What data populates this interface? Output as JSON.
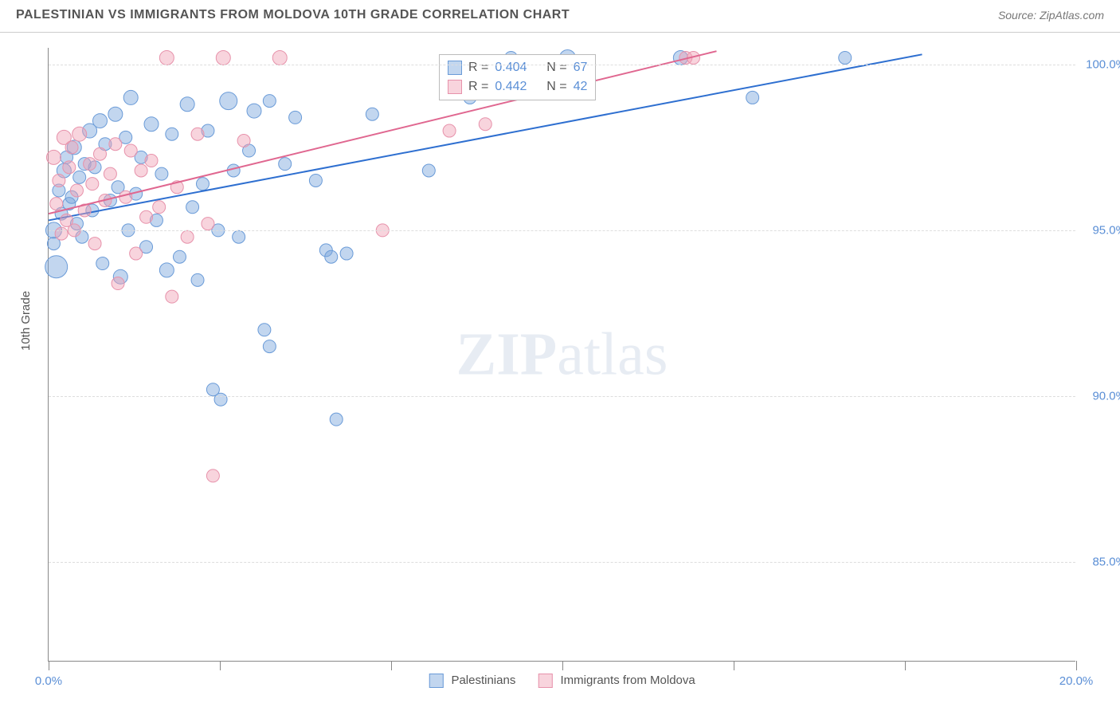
{
  "header": {
    "title": "PALESTINIAN VS IMMIGRANTS FROM MOLDOVA 10TH GRADE CORRELATION CHART",
    "source": "Source: ZipAtlas.com"
  },
  "chart": {
    "type": "scatter",
    "y_axis_title": "10th Grade",
    "xlim": [
      0,
      20
    ],
    "ylim": [
      82,
      100.5
    ],
    "x_ticks": [
      0,
      10,
      20
    ],
    "x_tick_labels": [
      "0.0%",
      "",
      "20.0%"
    ],
    "x_minor_ticks": [
      3.33,
      6.67,
      13.33,
      16.67
    ],
    "y_ticks": [
      85,
      90,
      95,
      100
    ],
    "y_tick_labels": [
      "85.0%",
      "90.0%",
      "95.0%",
      "100.0%"
    ],
    "background_color": "#ffffff",
    "grid_color": "#dddddd",
    "axis_color": "#888888",
    "tick_label_color": "#5b8fd6",
    "watermark_text_bold": "ZIP",
    "watermark_text_light": "atlas",
    "series": [
      {
        "name": "Palestinians",
        "color_fill": "rgba(120,165,220,0.45)",
        "color_stroke": "#6a9bd8",
        "trend_color": "#2e6fd0",
        "trend": {
          "x1": 0,
          "y1": 95.3,
          "x2": 17,
          "y2": 100.3
        },
        "r_label": "R =",
        "r_value": "0.404",
        "n_label": "N =",
        "n_value": "67",
        "points": [
          {
            "x": 0.1,
            "y": 95.0,
            "r": 10
          },
          {
            "x": 0.1,
            "y": 94.6,
            "r": 8
          },
          {
            "x": 0.15,
            "y": 93.9,
            "r": 14
          },
          {
            "x": 0.2,
            "y": 96.2,
            "r": 8
          },
          {
            "x": 0.25,
            "y": 95.5,
            "r": 8
          },
          {
            "x": 0.3,
            "y": 96.8,
            "r": 9
          },
          {
            "x": 0.35,
            "y": 97.2,
            "r": 8
          },
          {
            "x": 0.4,
            "y": 95.8,
            "r": 8
          },
          {
            "x": 0.45,
            "y": 96.0,
            "r": 8
          },
          {
            "x": 0.5,
            "y": 97.5,
            "r": 9
          },
          {
            "x": 0.55,
            "y": 95.2,
            "r": 8
          },
          {
            "x": 0.6,
            "y": 96.6,
            "r": 8
          },
          {
            "x": 0.65,
            "y": 94.8,
            "r": 8
          },
          {
            "x": 0.7,
            "y": 97.0,
            "r": 8
          },
          {
            "x": 0.8,
            "y": 98.0,
            "r": 9
          },
          {
            "x": 0.85,
            "y": 95.6,
            "r": 8
          },
          {
            "x": 0.9,
            "y": 96.9,
            "r": 8
          },
          {
            "x": 1.0,
            "y": 98.3,
            "r": 9
          },
          {
            "x": 1.05,
            "y": 94.0,
            "r": 8
          },
          {
            "x": 1.1,
            "y": 97.6,
            "r": 8
          },
          {
            "x": 1.2,
            "y": 95.9,
            "r": 8
          },
          {
            "x": 1.3,
            "y": 98.5,
            "r": 9
          },
          {
            "x": 1.35,
            "y": 96.3,
            "r": 8
          },
          {
            "x": 1.4,
            "y": 93.6,
            "r": 9
          },
          {
            "x": 1.5,
            "y": 97.8,
            "r": 8
          },
          {
            "x": 1.55,
            "y": 95.0,
            "r": 8
          },
          {
            "x": 1.6,
            "y": 99.0,
            "r": 9
          },
          {
            "x": 1.7,
            "y": 96.1,
            "r": 8
          },
          {
            "x": 1.8,
            "y": 97.2,
            "r": 8
          },
          {
            "x": 1.9,
            "y": 94.5,
            "r": 8
          },
          {
            "x": 2.0,
            "y": 98.2,
            "r": 9
          },
          {
            "x": 2.1,
            "y": 95.3,
            "r": 8
          },
          {
            "x": 2.2,
            "y": 96.7,
            "r": 8
          },
          {
            "x": 2.3,
            "y": 93.8,
            "r": 9
          },
          {
            "x": 2.4,
            "y": 97.9,
            "r": 8
          },
          {
            "x": 2.55,
            "y": 94.2,
            "r": 8
          },
          {
            "x": 2.7,
            "y": 98.8,
            "r": 9
          },
          {
            "x": 2.8,
            "y": 95.7,
            "r": 8
          },
          {
            "x": 2.9,
            "y": 93.5,
            "r": 8
          },
          {
            "x": 3.0,
            "y": 96.4,
            "r": 8
          },
          {
            "x": 3.1,
            "y": 98.0,
            "r": 8
          },
          {
            "x": 3.2,
            "y": 90.2,
            "r": 8
          },
          {
            "x": 3.3,
            "y": 95.0,
            "r": 8
          },
          {
            "x": 3.35,
            "y": 89.9,
            "r": 8
          },
          {
            "x": 3.5,
            "y": 98.9,
            "r": 11
          },
          {
            "x": 3.6,
            "y": 96.8,
            "r": 8
          },
          {
            "x": 3.7,
            "y": 94.8,
            "r": 8
          },
          {
            "x": 3.9,
            "y": 97.4,
            "r": 8
          },
          {
            "x": 4.0,
            "y": 98.6,
            "r": 9
          },
          {
            "x": 4.2,
            "y": 92.0,
            "r": 8
          },
          {
            "x": 4.3,
            "y": 98.9,
            "r": 8
          },
          {
            "x": 4.3,
            "y": 91.5,
            "r": 8
          },
          {
            "x": 4.6,
            "y": 97.0,
            "r": 8
          },
          {
            "x": 4.8,
            "y": 98.4,
            "r": 8
          },
          {
            "x": 5.2,
            "y": 96.5,
            "r": 8
          },
          {
            "x": 5.4,
            "y": 94.4,
            "r": 8
          },
          {
            "x": 5.5,
            "y": 94.2,
            "r": 8
          },
          {
            "x": 5.6,
            "y": 89.3,
            "r": 8
          },
          {
            "x": 6.3,
            "y": 98.5,
            "r": 8
          },
          {
            "x": 7.4,
            "y": 96.8,
            "r": 8
          },
          {
            "x": 8.2,
            "y": 99.0,
            "r": 8
          },
          {
            "x": 9.0,
            "y": 100.2,
            "r": 8
          },
          {
            "x": 10.1,
            "y": 100.2,
            "r": 10
          },
          {
            "x": 12.3,
            "y": 100.2,
            "r": 9
          },
          {
            "x": 13.7,
            "y": 99.0,
            "r": 8
          },
          {
            "x": 15.5,
            "y": 100.2,
            "r": 8
          },
          {
            "x": 5.8,
            "y": 94.3,
            "r": 8
          }
        ]
      },
      {
        "name": "Immigrants from Moldova",
        "color_fill": "rgba(240,160,180,0.45)",
        "color_stroke": "#e792ab",
        "trend_color": "#e06790",
        "trend": {
          "x1": 0,
          "y1": 95.5,
          "x2": 13,
          "y2": 100.4
        },
        "r_label": "R =",
        "r_value": "0.442",
        "n_label": "N =",
        "n_value": "42",
        "points": [
          {
            "x": 0.1,
            "y": 97.2,
            "r": 9
          },
          {
            "x": 0.15,
            "y": 95.8,
            "r": 8
          },
          {
            "x": 0.2,
            "y": 96.5,
            "r": 8
          },
          {
            "x": 0.25,
            "y": 94.9,
            "r": 8
          },
          {
            "x": 0.3,
            "y": 97.8,
            "r": 9
          },
          {
            "x": 0.35,
            "y": 95.3,
            "r": 8
          },
          {
            "x": 0.4,
            "y": 96.9,
            "r": 8
          },
          {
            "x": 0.45,
            "y": 97.5,
            "r": 8
          },
          {
            "x": 0.5,
            "y": 95.0,
            "r": 8
          },
          {
            "x": 0.55,
            "y": 96.2,
            "r": 8
          },
          {
            "x": 0.6,
            "y": 97.9,
            "r": 9
          },
          {
            "x": 0.7,
            "y": 95.6,
            "r": 8
          },
          {
            "x": 0.8,
            "y": 97.0,
            "r": 8
          },
          {
            "x": 0.85,
            "y": 96.4,
            "r": 8
          },
          {
            "x": 0.9,
            "y": 94.6,
            "r": 8
          },
          {
            "x": 1.0,
            "y": 97.3,
            "r": 8
          },
          {
            "x": 1.1,
            "y": 95.9,
            "r": 8
          },
          {
            "x": 1.2,
            "y": 96.7,
            "r": 8
          },
          {
            "x": 1.3,
            "y": 97.6,
            "r": 8
          },
          {
            "x": 1.35,
            "y": 93.4,
            "r": 8
          },
          {
            "x": 1.5,
            "y": 96.0,
            "r": 8
          },
          {
            "x": 1.6,
            "y": 97.4,
            "r": 8
          },
          {
            "x": 1.7,
            "y": 94.3,
            "r": 8
          },
          {
            "x": 1.8,
            "y": 96.8,
            "r": 8
          },
          {
            "x": 1.9,
            "y": 95.4,
            "r": 8
          },
          {
            "x": 2.0,
            "y": 97.1,
            "r": 8
          },
          {
            "x": 2.15,
            "y": 95.7,
            "r": 8
          },
          {
            "x": 2.3,
            "y": 100.2,
            "r": 9
          },
          {
            "x": 2.4,
            "y": 93.0,
            "r": 8
          },
          {
            "x": 2.5,
            "y": 96.3,
            "r": 8
          },
          {
            "x": 2.7,
            "y": 94.8,
            "r": 8
          },
          {
            "x": 2.9,
            "y": 97.9,
            "r": 8
          },
          {
            "x": 3.1,
            "y": 95.2,
            "r": 8
          },
          {
            "x": 3.2,
            "y": 87.6,
            "r": 8
          },
          {
            "x": 3.4,
            "y": 100.2,
            "r": 9
          },
          {
            "x": 3.8,
            "y": 97.7,
            "r": 8
          },
          {
            "x": 4.5,
            "y": 100.2,
            "r": 9
          },
          {
            "x": 6.5,
            "y": 95.0,
            "r": 8
          },
          {
            "x": 7.8,
            "y": 98.0,
            "r": 8
          },
          {
            "x": 8.5,
            "y": 98.2,
            "r": 8
          },
          {
            "x": 12.4,
            "y": 100.2,
            "r": 8
          },
          {
            "x": 12.55,
            "y": 100.2,
            "r": 8
          }
        ]
      }
    ],
    "bottom_legend": [
      {
        "label": "Palestinians",
        "fill": "rgba(120,165,220,0.45)",
        "stroke": "#6a9bd8"
      },
      {
        "label": "Immigrants from Moldova",
        "fill": "rgba(240,160,180,0.45)",
        "stroke": "#e792ab"
      }
    ]
  }
}
